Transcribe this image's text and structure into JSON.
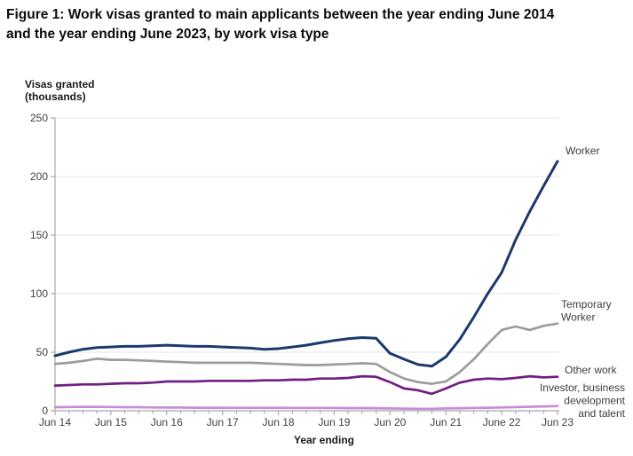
{
  "title_lines": [
    "Figure 1: Work visas granted to main applicants between the year ending June 2014",
    "and the year ending June 2023, by work visa type"
  ],
  "chart_data": {
    "type": "line",
    "title": "Figure 1: Work visas granted to main applicants between the year ending June 2014 and the year ending June 2023, by work visa type",
    "xlabel": "Year ending",
    "ylabel_line1": "Visas granted",
    "ylabel_line2": "(thousands)",
    "ylim": [
      0,
      250
    ],
    "yticks": [
      0,
      50,
      100,
      150,
      200,
      250
    ],
    "grid": "horizontal gridlines on",
    "legend": "labels at right end of each line",
    "x_tick_labels": [
      "Jun 14",
      "Jun 15",
      "Jun 16",
      "Jun 17",
      "Jun 18",
      "Jun 19",
      "Jun 20",
      "Jun 21",
      "June 22",
      "Jun 23"
    ],
    "x_frequency": "quarterly points, minor tick every quarter",
    "series": [
      {
        "name": "Worker",
        "color": "#1b3a6b",
        "label_lines": [
          "Worker"
        ],
        "values": [
          47,
          50,
          52.5,
          54,
          54.5,
          55,
          55,
          55.5,
          56,
          55.5,
          55,
          55,
          54.5,
          54,
          53.5,
          52.5,
          53,
          54.5,
          56,
          58,
          60,
          61.5,
          62.5,
          62,
          49,
          44,
          39.5,
          38,
          46,
          61,
          80,
          100,
          118,
          146,
          170,
          192,
          213
        ]
      },
      {
        "name": "Temporary Worker",
        "color": "#9c9c9c",
        "label_lines": [
          "Temporary",
          "Worker"
        ],
        "values": [
          40,
          41,
          42.5,
          44.5,
          43.5,
          43.5,
          43,
          42.5,
          42,
          41.5,
          41,
          41,
          41,
          41,
          41,
          40.5,
          40,
          39.5,
          39,
          39,
          39.5,
          40,
          40.5,
          40,
          33,
          27.5,
          24.5,
          23,
          25,
          33,
          44,
          57,
          69,
          72,
          69,
          72.5,
          74.5
        ]
      },
      {
        "name": "Other work",
        "color": "#701f80",
        "label_lines": [
          "Other work"
        ],
        "values": [
          21.5,
          22,
          22.5,
          22.5,
          23,
          23.5,
          23.5,
          24,
          25,
          25,
          25,
          25.5,
          25.5,
          25.5,
          25.5,
          26,
          26,
          26.5,
          26.5,
          27.5,
          27.5,
          28,
          29.5,
          29,
          24.5,
          19,
          17.5,
          14.5,
          19,
          24,
          26.5,
          27.5,
          27,
          28,
          29.5,
          28.5,
          29
        ]
      },
      {
        "name": "Investor, business development and talent",
        "color": "#c88cd7",
        "label_lines": [
          "Investor, business",
          "development",
          "and talent"
        ],
        "values": [
          3,
          3.2,
          3.3,
          3.3,
          3.2,
          3,
          3,
          2.8,
          2.7,
          2.7,
          2.6,
          2.6,
          2.6,
          2.5,
          2.5,
          2.5,
          2.5,
          2.4,
          2.4,
          2.4,
          2.4,
          2.3,
          2.3,
          2.2,
          2,
          1.8,
          1.7,
          1.7,
          2,
          2.2,
          2.4,
          2.6,
          2.8,
          3.1,
          3.4,
          3.7,
          4
        ]
      }
    ]
  }
}
